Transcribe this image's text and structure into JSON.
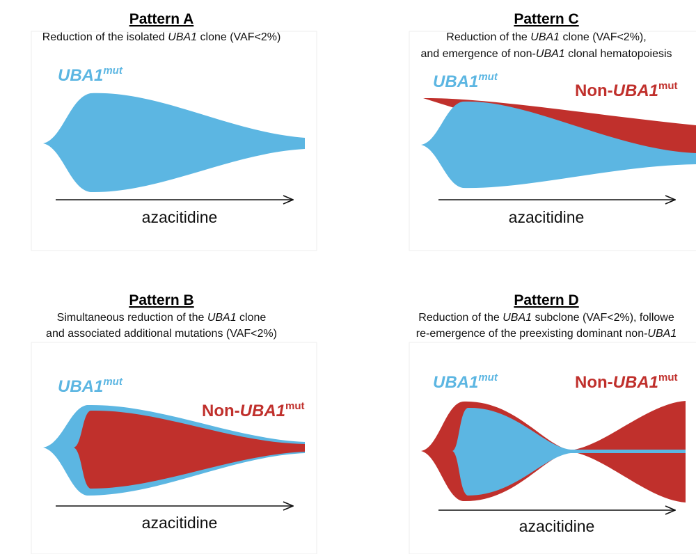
{
  "colors": {
    "uba1": "#5cb6e2",
    "non_uba1": "#c0302c"
  },
  "panels": {
    "a": {
      "title": "Pattern A",
      "line1": [
        "Reduction of the isolated ",
        "UBA1",
        " clone (VAF<2%)"
      ],
      "label_uba1": "UBA1",
      "label_sup": "mut",
      "axis": "azacitidine"
    },
    "c": {
      "title": "Pattern C",
      "line1": [
        "Reduction of the ",
        "UBA1",
        " clone (VAF<2%),"
      ],
      "line2": [
        "and emergence of non-",
        "UBA1",
        " clonal hematopoiesis"
      ],
      "label_uba1": "UBA1",
      "label_sup": "mut",
      "label_non_prefix": "Non-",
      "label_non": "UBA1",
      "label_non_sup": "mut",
      "axis": "azacitidine"
    },
    "b": {
      "title": "Pattern B",
      "line1": [
        "Simultaneous reduction of the ",
        "UBA1",
        " clone"
      ],
      "line2": [
        "and associated additional mutations (VAF<2%)"
      ],
      "label_uba1": "UBA1",
      "label_sup": "mut",
      "label_non_prefix": "Non-",
      "label_non": "UBA1",
      "label_non_sup": "mut",
      "axis": "azacitidine"
    },
    "d": {
      "title": "Pattern D",
      "line1": [
        "Reduction of the ",
        "UBA1",
        " subclone (VAF<2%), followe"
      ],
      "line2": [
        "re-emergence of the preexisting dominant non-",
        "UBA1"
      ],
      "label_uba1": "UBA1",
      "label_sup": "mut",
      "label_non_prefix": "Non-",
      "label_non": "UBA1",
      "label_non_sup": "mut",
      "axis": "azacitidine"
    }
  }
}
